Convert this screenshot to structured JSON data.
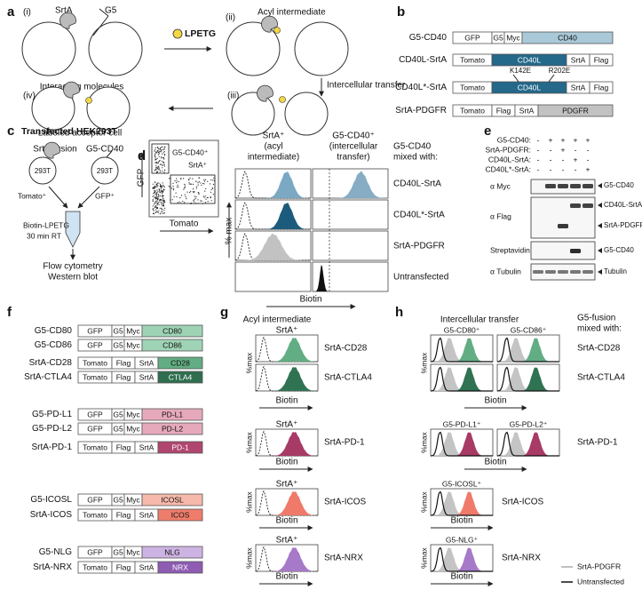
{
  "a": {
    "label": "a",
    "steps": [
      "(i)",
      "(ii)",
      "(iii)",
      "(iv)"
    ],
    "srta": "SrtA",
    "g5": "G5",
    "interacting": "Interacting molecules",
    "substrate": "LPETG",
    "acyl": "Acyl intermediate",
    "transfer": "Intercellular transfer",
    "labeled": "Labeled acceptor cell"
  },
  "b": {
    "label": "b",
    "constructs": [
      {
        "name": "G5-CD40",
        "parts": [
          "GFP",
          "G5",
          "Myc",
          "CD40"
        ]
      },
      {
        "name": "CD40L-SrtA",
        "parts": [
          "Tomato",
          "CD40L",
          "SrtA",
          "Flag"
        ]
      },
      {
        "name": "CD40L*-SrtA",
        "parts": [
          "Tomato",
          "CD40L",
          "SrtA",
          "Flag"
        ]
      },
      {
        "name": "SrtA-PDGFR",
        "parts": [
          "Tomato",
          "Flag",
          "SrtA",
          "PDGFR"
        ]
      }
    ],
    "mutations": [
      "K142E",
      "R202E"
    ]
  },
  "c": {
    "label": "c",
    "title": "Transfected HEK293T",
    "donor": "SrtA-fusion",
    "acceptor": "G5-CD40",
    "cell_lines": [
      "293T",
      "293T"
    ],
    "markers": [
      "Tomato⁺",
      "GFP⁺"
    ],
    "treatment": [
      "Biotin-LPETG",
      "30 min RT"
    ],
    "readouts": [
      "Flow cytometry",
      "Western blot"
    ]
  },
  "d": {
    "label": "d",
    "scatter": {
      "y_label": "GFP",
      "x_label": "Tomato",
      "gates": [
        "G5-CD40⁺",
        "SrtA⁺"
      ]
    },
    "y_label": "% max",
    "columns": [
      [
        "SrtA⁺",
        "(acyl",
        "intermediate)"
      ],
      [
        "G5-CD40⁺",
        "(intercellular",
        "transfer)"
      ]
    ],
    "legend_title": [
      "G5-CD40",
      "mixed with:"
    ],
    "rows": [
      "CD40L-SrtA",
      "CD40L*-SrtA",
      "SrtA-PDGFR",
      "Untransfected"
    ],
    "x_label": "Biotin"
  },
  "e": {
    "label": "e",
    "conditions": [
      {
        "name": "G5-CD40:",
        "signs": [
          "-",
          "+",
          "+",
          "+",
          "+"
        ]
      },
      {
        "name": "SrtA-PDGFR:",
        "signs": [
          "-",
          "-",
          "+",
          "-",
          "-"
        ]
      },
      {
        "name": "CD40L-SrtA:",
        "signs": [
          "-",
          "-",
          "-",
          "+",
          "-"
        ]
      },
      {
        "name": "CD40L*-SrtA:",
        "signs": [
          "-",
          "-",
          "-",
          "-",
          "+"
        ]
      }
    ],
    "blots": [
      "α Myc",
      "α Flag",
      "Streptavidin",
      "α Tubulin"
    ],
    "bands": [
      "G5-CD40",
      "CD40L-SrtA",
      "SrtA-PDGFR",
      "G5-CD40",
      "Tubulin"
    ]
  },
  "f": {
    "label": "f",
    "groups": [
      [
        {
          "name": "G5-CD80",
          "parts": [
            "GFP",
            "G5",
            "Myc",
            "CD80"
          ]
        },
        {
          "name": "G5-CD86",
          "parts": [
            "GFP",
            "G5",
            "Myc",
            "CD86"
          ]
        },
        {
          "name": "SrtA-CD28",
          "parts": [
            "Tomato",
            "Flag",
            "SrtA",
            "CD28"
          ]
        },
        {
          "name": "SrtA-CTLA4",
          "parts": [
            "Tomato",
            "Flag",
            "SrtA",
            "CTLA4"
          ]
        }
      ],
      [
        {
          "name": "G5-PD-L1",
          "parts": [
            "GFP",
            "G5",
            "Myc",
            "PD-L1"
          ]
        },
        {
          "name": "G5-PD-L2",
          "parts": [
            "GFP",
            "G5",
            "Myc",
            "PD-L2"
          ]
        },
        {
          "name": "SrtA-PD-1",
          "parts": [
            "Tomato",
            "Flag",
            "SrtA",
            "PD-1"
          ]
        }
      ],
      [
        {
          "name": "G5-ICOSL",
          "parts": [
            "GFP",
            "G5",
            "Myc",
            "ICOSL"
          ]
        },
        {
          "name": "SrtA-ICOS",
          "parts": [
            "Tomato",
            "Flag",
            "SrtA",
            "ICOS"
          ]
        }
      ],
      [
        {
          "name": "G5-NLG",
          "parts": [
            "GFP",
            "G5",
            "Myc",
            "NLG"
          ]
        },
        {
          "name": "SrtA-NRX",
          "parts": [
            "Tomato",
            "Flag",
            "SrtA",
            "NRX"
          ]
        }
      ]
    ]
  },
  "g": {
    "label": "g",
    "title": "Acyl intermediate",
    "y_label": "%max",
    "x_label": "Biotin",
    "rows": [
      {
        "header": "SrtA⁺",
        "fusions": [
          "SrtA-CD28",
          "SrtA-CTLA4"
        ]
      },
      {
        "header": "SrtA⁺",
        "fusions": [
          "SrtA-PD-1"
        ]
      },
      {
        "header": "SrtA⁺",
        "fusions": [
          "SrtA-ICOS"
        ]
      },
      {
        "header": "SrtA⁺",
        "fusions": [
          "SrtA-NRX"
        ]
      }
    ]
  },
  "h": {
    "label": "h",
    "title": "Intercellular transfer",
    "legend_title": [
      "G5-fusion",
      "mixed with:"
    ],
    "y_label": "%max",
    "x_label": "Biotin",
    "rows": [
      {
        "headers": [
          "G5-CD80⁺",
          "G5-CD86⁺"
        ],
        "fusions": [
          "SrtA-CD28",
          "SrtA-CTLA4"
        ]
      },
      {
        "headers": [
          "G5-PD-L1⁺",
          "G5-PD-L2⁺"
        ],
        "fusions": [
          "SrtA-PD-1"
        ]
      },
      {
        "headers": [
          "G5-ICOSL⁺"
        ],
        "fusions": [
          "SrtA-ICOS"
        ]
      },
      {
        "headers": [
          "G5-NLG⁺"
        ],
        "fusions": [
          "SrtA-NRX"
        ]
      }
    ],
    "legend": [
      "SrtA-PDGFR",
      "Untransfected"
    ]
  }
}
